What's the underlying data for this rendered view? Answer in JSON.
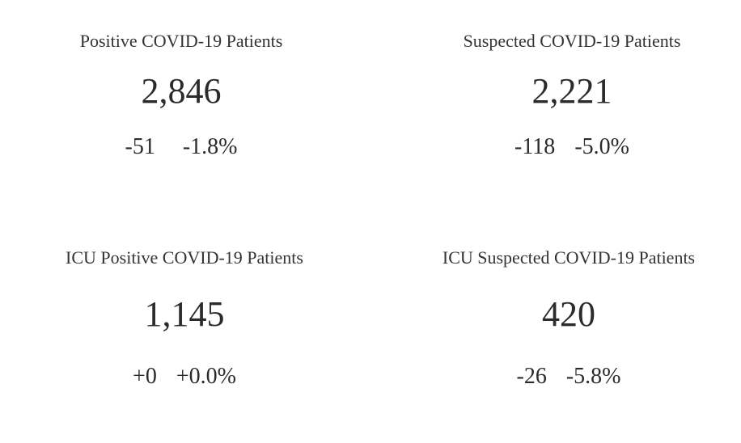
{
  "cards": [
    {
      "title": "Positive COVID-19 Patients",
      "value": "2,846",
      "change_abs": "-51",
      "change_pct": "-1.8%"
    },
    {
      "title": "Suspected COVID-19 Patients",
      "value": "2,221",
      "change_abs": "-118",
      "change_pct": "-5.0%"
    },
    {
      "title": "ICU Positive COVID-19 Patients",
      "value": "1,145",
      "change_abs": "+0",
      "change_pct": "+0.0%"
    },
    {
      "title": "ICU Suspected COVID-19 Patients",
      "value": "420",
      "change_abs": "-26",
      "change_pct": "-5.8%"
    }
  ]
}
